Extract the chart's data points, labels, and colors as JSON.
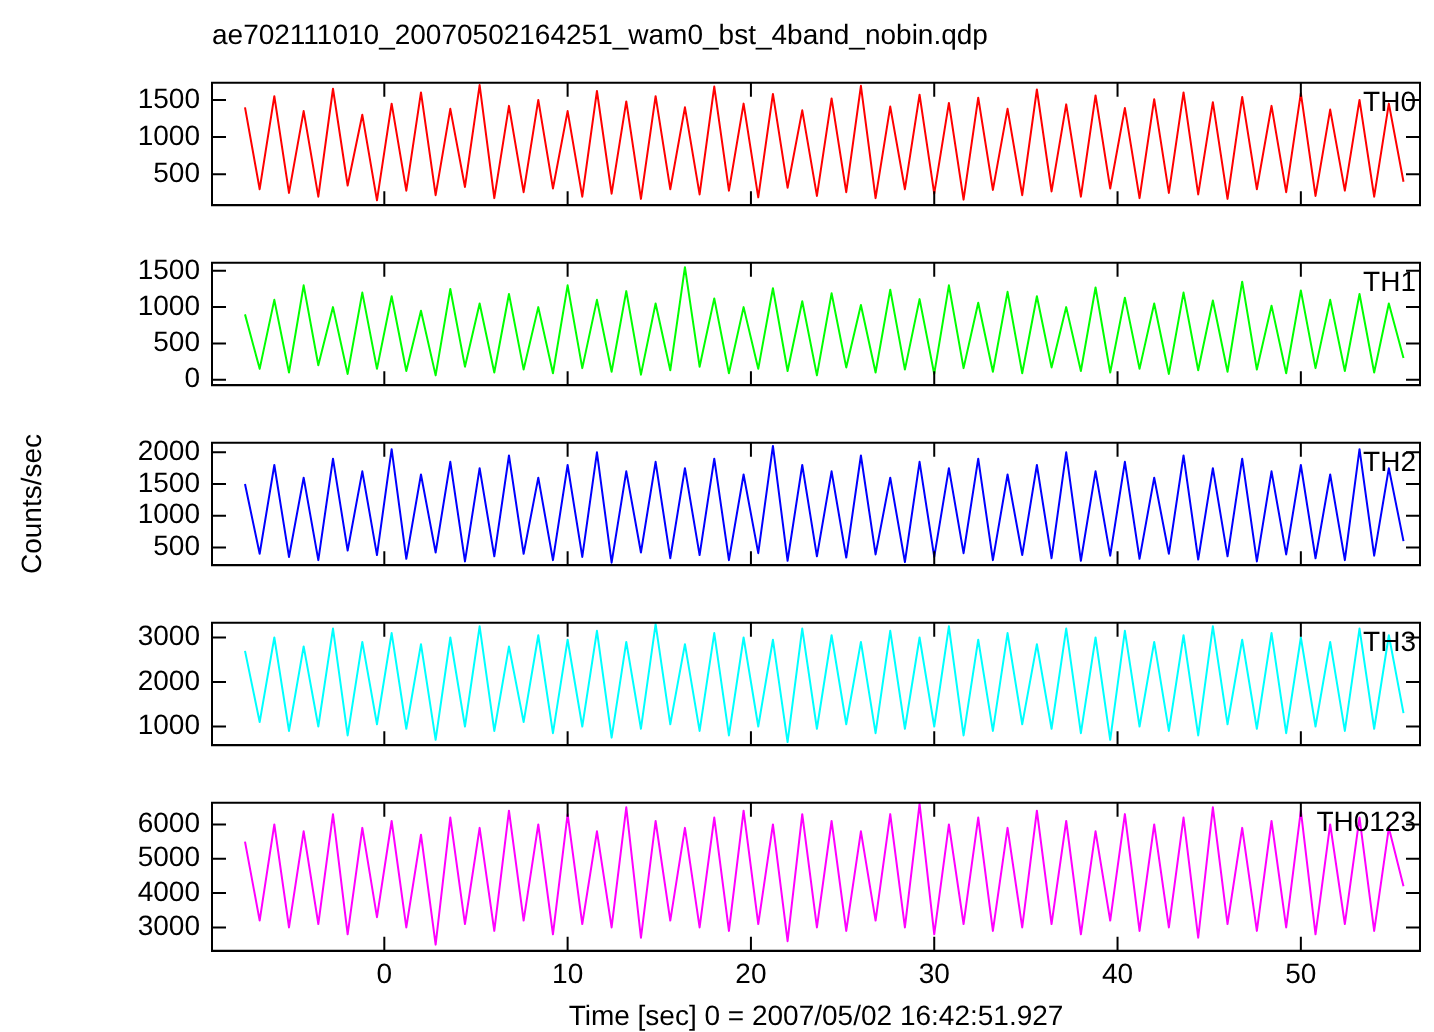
{
  "chart_data": [
    {
      "type": "line",
      "title": "ae702111010_20070502164251_wam0_bst_4band_nobin.qdp",
      "xlim": [
        -9.4,
        56.5
      ],
      "xticks": [
        0,
        10,
        20,
        30,
        40,
        50
      ],
      "ylim": [
        85,
        1730
      ],
      "yticks": [
        500,
        1000,
        1500
      ],
      "tick_labels": "y",
      "x": [
        -7.6,
        -6.8,
        -6,
        -5.2,
        -4.4,
        -3.6,
        -2.8,
        -2,
        -1.2,
        -0.4,
        0.4,
        1.2,
        2,
        2.8,
        3.6,
        4.4,
        5.2,
        6,
        6.8,
        7.6,
        8.4,
        9.2,
        10,
        10.8,
        11.6,
        12.4,
        13.2,
        14,
        14.8,
        15.6,
        16.4,
        17.2,
        18,
        18.8,
        19.6,
        20.4,
        21.2,
        22,
        22.8,
        23.6,
        24.4,
        25.2,
        26,
        26.8,
        27.6,
        28.4,
        29.2,
        30,
        30.8,
        31.6,
        32.4,
        33.2,
        34,
        34.8,
        35.6,
        36.4,
        37.2,
        38,
        38.8,
        39.6,
        40.4,
        41.2,
        42,
        42.8,
        43.6,
        44.4,
        45.2,
        46,
        46.8,
        47.6,
        48.4,
        49.2,
        50,
        50.8,
        51.6,
        52.4,
        53.2,
        54,
        54.8,
        55.6
      ],
      "series": [
        {
          "name": "TH0",
          "color": "#ff0000",
          "values": [
            1400,
            300,
            1550,
            250,
            1350,
            200,
            1650,
            350,
            1300,
            150,
            1450,
            280,
            1600,
            220,
            1380,
            330,
            1700,
            180,
            1420,
            260,
            1500,
            310,
            1350,
            200,
            1620,
            240,
            1480,
            170,
            1550,
            300,
            1400,
            230,
            1680,
            280,
            1450,
            190,
            1580,
            320,
            1360,
            210,
            1520,
            260,
            1690,
            180,
            1410,
            300,
            1570,
            240,
            1460,
            160,
            1530,
            290,
            1380,
            220,
            1640,
            270,
            1440,
            200,
            1560,
            310,
            1390,
            180,
            1510,
            250,
            1600,
            230,
            1470,
            170,
            1540,
            300,
            1420,
            260,
            1590,
            210,
            1370,
            280,
            1500,
            200,
            1450,
            400
          ]
        }
      ]
    },
    {
      "type": "line",
      "xlim": [
        -9.4,
        56.5
      ],
      "xticks": [
        0,
        10,
        20,
        30,
        40,
        50
      ],
      "ylim": [
        -75,
        1610
      ],
      "yticks": [
        0,
        500,
        1000,
        1500
      ],
      "tick_labels": "y",
      "x": [
        -7.6,
        -6.8,
        -6,
        -5.2,
        -4.4,
        -3.6,
        -2.8,
        -2,
        -1.2,
        -0.4,
        0.4,
        1.2,
        2,
        2.8,
        3.6,
        4.4,
        5.2,
        6,
        6.8,
        7.6,
        8.4,
        9.2,
        10,
        10.8,
        11.6,
        12.4,
        13.2,
        14,
        14.8,
        15.6,
        16.4,
        17.2,
        18,
        18.8,
        19.6,
        20.4,
        21.2,
        22,
        22.8,
        23.6,
        24.4,
        25.2,
        26,
        26.8,
        27.6,
        28.4,
        29.2,
        30,
        30.8,
        31.6,
        32.4,
        33.2,
        34,
        34.8,
        35.6,
        36.4,
        37.2,
        38,
        38.8,
        39.6,
        40.4,
        41.2,
        42,
        42.8,
        43.6,
        44.4,
        45.2,
        46,
        46.8,
        47.6,
        48.4,
        49.2,
        50,
        50.8,
        51.6,
        52.4,
        53.2,
        54,
        54.8,
        55.6
      ],
      "series": [
        {
          "name": "TH1",
          "color": "#00ff00",
          "values": [
            900,
            150,
            1100,
            100,
            1300,
            200,
            1000,
            80,
            1200,
            150,
            1150,
            120,
            950,
            60,
            1250,
            180,
            1050,
            100,
            1180,
            140,
            1000,
            90,
            1300,
            160,
            1100,
            110,
            1220,
            70,
            1050,
            130,
            1550,
            180,
            1120,
            90,
            1000,
            150,
            1260,
            120,
            1080,
            60,
            1190,
            170,
            1030,
            100,
            1240,
            140,
            1110,
            80,
            1300,
            160,
            1060,
            110,
            1210,
            90,
            1150,
            170,
            1000,
            120,
            1270,
            100,
            1130,
            150,
            1050,
            80,
            1200,
            130,
            1090,
            110,
            1350,
            140,
            1020,
            90,
            1230,
            160,
            1100,
            120,
            1180,
            100,
            1050,
            300
          ]
        }
      ]
    },
    {
      "type": "line",
      "ylabel": "Counts/sec",
      "xlim": [
        -9.4,
        56.5
      ],
      "xticks": [
        0,
        10,
        20,
        30,
        40,
        50
      ],
      "ylim": [
        220,
        2150
      ],
      "yticks": [
        500,
        1000,
        1500,
        2000
      ],
      "tick_labels": "y",
      "x": [
        -7.6,
        -6.8,
        -6,
        -5.2,
        -4.4,
        -3.6,
        -2.8,
        -2,
        -1.2,
        -0.4,
        0.4,
        1.2,
        2,
        2.8,
        3.6,
        4.4,
        5.2,
        6,
        6.8,
        7.6,
        8.4,
        9.2,
        10,
        10.8,
        11.6,
        12.4,
        13.2,
        14,
        14.8,
        15.6,
        16.4,
        17.2,
        18,
        18.8,
        19.6,
        20.4,
        21.2,
        22,
        22.8,
        23.6,
        24.4,
        25.2,
        26,
        26.8,
        27.6,
        28.4,
        29.2,
        30,
        30.8,
        31.6,
        32.4,
        33.2,
        34,
        34.8,
        35.6,
        36.4,
        37.2,
        38,
        38.8,
        39.6,
        40.4,
        41.2,
        42,
        42.8,
        43.6,
        44.4,
        45.2,
        46,
        46.8,
        47.6,
        48.4,
        49.2,
        50,
        50.8,
        51.6,
        52.4,
        53.2,
        54,
        54.8,
        55.6
      ],
      "series": [
        {
          "name": "TH2",
          "color": "#0000ff",
          "values": [
            1500,
            400,
            1800,
            350,
            1600,
            300,
            1900,
            450,
            1700,
            380,
            2050,
            320,
            1650,
            420,
            1850,
            280,
            1750,
            360,
            1950,
            400,
            1600,
            300,
            1800,
            350,
            2000,
            260,
            1700,
            420,
            1850,
            330,
            1750,
            380,
            1900,
            300,
            1650,
            410,
            2100,
            290,
            1800,
            360,
            1700,
            340,
            1950,
            390,
            1600,
            270,
            1850,
            350,
            1750,
            410,
            1900,
            300,
            1650,
            380,
            1800,
            330,
            2000,
            290,
            1700,
            370,
            1850,
            320,
            1600,
            400,
            1950,
            310,
            1750,
            360,
            1900,
            280,
            1700,
            390,
            1800,
            330,
            1650,
            300,
            2050,
            370,
            1750,
            600
          ]
        }
      ]
    },
    {
      "type": "line",
      "xlim": [
        -9.4,
        56.5
      ],
      "xticks": [
        0,
        10,
        20,
        30,
        40,
        50
      ],
      "ylim": [
        580,
        3330
      ],
      "yticks": [
        1000,
        2000,
        3000
      ],
      "tick_labels": "y",
      "x": [
        -7.6,
        -6.8,
        -6,
        -5.2,
        -4.4,
        -3.6,
        -2.8,
        -2,
        -1.2,
        -0.4,
        0.4,
        1.2,
        2,
        2.8,
        3.6,
        4.4,
        5.2,
        6,
        6.8,
        7.6,
        8.4,
        9.2,
        10,
        10.8,
        11.6,
        12.4,
        13.2,
        14,
        14.8,
        15.6,
        16.4,
        17.2,
        18,
        18.8,
        19.6,
        20.4,
        21.2,
        22,
        22.8,
        23.6,
        24.4,
        25.2,
        26,
        26.8,
        27.6,
        28.4,
        29.2,
        30,
        30.8,
        31.6,
        32.4,
        33.2,
        34,
        34.8,
        35.6,
        36.4,
        37.2,
        38,
        38.8,
        39.6,
        40.4,
        41.2,
        42,
        42.8,
        43.6,
        44.4,
        45.2,
        46,
        46.8,
        47.6,
        48.4,
        49.2,
        50,
        50.8,
        51.6,
        52.4,
        53.2,
        54,
        54.8,
        55.6
      ],
      "series": [
        {
          "name": "TH3",
          "color": "#00ffff",
          "values": [
            2700,
            1100,
            3000,
            900,
            2800,
            1000,
            3200,
            800,
            2900,
            1050,
            3100,
            950,
            2850,
            700,
            3000,
            1000,
            3250,
            900,
            2800,
            1100,
            3050,
            850,
            2950,
            1000,
            3150,
            750,
            2900,
            950,
            3300,
            1050,
            2850,
            900,
            3100,
            800,
            3000,
            1000,
            2950,
            650,
            3200,
            950,
            3050,
            1050,
            2900,
            850,
            3150,
            950,
            3000,
            1000,
            3250,
            800,
            2950,
            900,
            3100,
            1050,
            2850,
            950,
            3200,
            850,
            3000,
            700,
            3150,
            1000,
            2900,
            900,
            3050,
            800,
            3250,
            1050,
            2950,
            950,
            3100,
            850,
            3000,
            1000,
            2900,
            900,
            3200,
            950,
            3050,
            1300
          ]
        }
      ]
    },
    {
      "type": "line",
      "xlabel": "Time [sec] 0 = 2007/05/02 16:42:51.927",
      "xlim": [
        -9.4,
        56.5
      ],
      "xticks": [
        0,
        10,
        20,
        30,
        40,
        50
      ],
      "ylim": [
        2320,
        6630
      ],
      "yticks": [
        3000,
        4000,
        5000,
        6000
      ],
      "x": [
        -7.6,
        -6.8,
        -6,
        -5.2,
        -4.4,
        -3.6,
        -2.8,
        -2,
        -1.2,
        -0.4,
        0.4,
        1.2,
        2,
        2.8,
        3.6,
        4.4,
        5.2,
        6,
        6.8,
        7.6,
        8.4,
        9.2,
        10,
        10.8,
        11.6,
        12.4,
        13.2,
        14,
        14.8,
        15.6,
        16.4,
        17.2,
        18,
        18.8,
        19.6,
        20.4,
        21.2,
        22,
        22.8,
        23.6,
        24.4,
        25.2,
        26,
        26.8,
        27.6,
        28.4,
        29.2,
        30,
        30.8,
        31.6,
        32.4,
        33.2,
        34,
        34.8,
        35.6,
        36.4,
        37.2,
        38,
        38.8,
        39.6,
        40.4,
        41.2,
        42,
        42.8,
        43.6,
        44.4,
        45.2,
        46,
        46.8,
        47.6,
        48.4,
        49.2,
        50,
        50.8,
        51.6,
        52.4,
        53.2,
        54,
        54.8,
        55.6
      ],
      "series": [
        {
          "name": "TH0123",
          "color": "#ff00ff",
          "values": [
            5500,
            3200,
            6000,
            3000,
            5800,
            3100,
            6300,
            2800,
            5900,
            3300,
            6100,
            3000,
            5700,
            2500,
            6200,
            3100,
            5900,
            2900,
            6400,
            3200,
            6000,
            2800,
            6300,
            3100,
            5800,
            3000,
            6500,
            2700,
            6100,
            3200,
            5900,
            3000,
            6200,
            2900,
            6400,
            3100,
            6000,
            2600,
            6300,
            3000,
            6100,
            2900,
            5800,
            3200,
            6300,
            3000,
            6600,
            2800,
            6000,
            3100,
            6200,
            2900,
            5900,
            3000,
            6400,
            3100,
            6100,
            2800,
            5800,
            3200,
            6300,
            2900,
            6000,
            3000,
            6200,
            2700,
            6500,
            3100,
            5900,
            2900,
            6100,
            3000,
            6400,
            2800,
            6000,
            3100,
            6200,
            2900,
            5900,
            4200
          ]
        }
      ]
    }
  ]
}
